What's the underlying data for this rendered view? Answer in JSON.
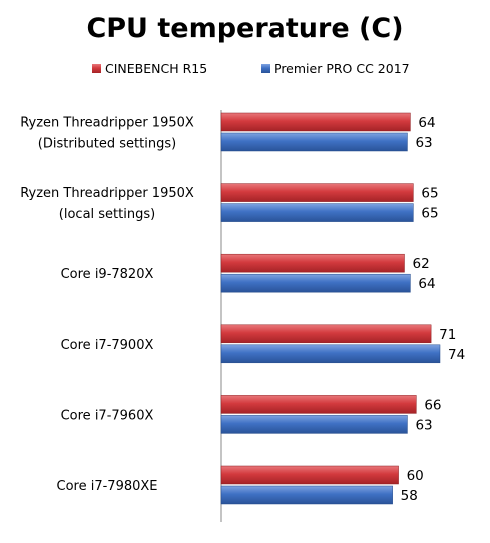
{
  "chart_data": {
    "type": "bar",
    "orientation": "horizontal",
    "title": "CPU temperature (C)",
    "xlabel": "",
    "ylabel": "",
    "legend_position": "top",
    "grid": false,
    "xlim": [
      0,
      80
    ],
    "categories": [
      [
        "Ryzen Threadripper 1950X",
        "(Distributed settings)"
      ],
      [
        "Ryzen Threadripper 1950X",
        "(local settings)"
      ],
      [
        "Core i9-7820X"
      ],
      [
        "Core i7-7900X"
      ],
      [
        "Core i7-7960X"
      ],
      [
        "Core i7-7980XE"
      ]
    ],
    "series": [
      {
        "name": "CINEBENCH R15",
        "color": "#d0383c",
        "values": [
          64,
          65,
          62,
          71,
          66,
          60
        ]
      },
      {
        "name": "Premier PRO CC 2017",
        "color": "#3d6fc2",
        "values": [
          63,
          65,
          64,
          74,
          63,
          58
        ]
      }
    ]
  }
}
